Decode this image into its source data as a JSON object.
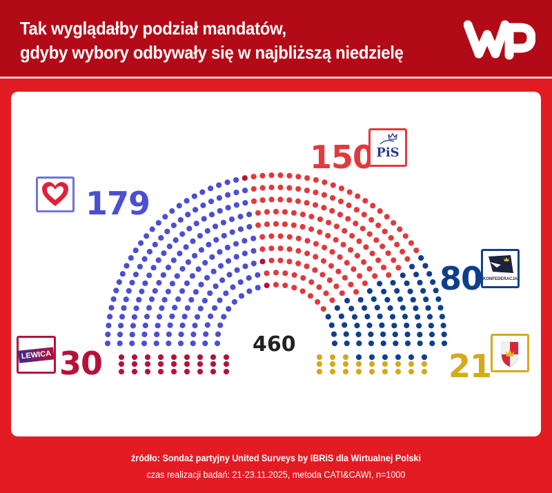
{
  "header": {
    "title_line1": "Tak wyglądałby podział mandatów,",
    "title_line2": "gdyby wybory odbywały się w najbliższą niedzielę",
    "logo": "WP"
  },
  "footer": {
    "source": "źródło: Sondaż partyjny United Surveys by IBRiS dla Wirtualnej Polski",
    "method": "czas realizacji badań: 21-23.11.2025, metoda CATI&CAWI, n=1000"
  },
  "total_seats": "460",
  "parties": {
    "ko": {
      "seats": "179",
      "logo": "heart-icon",
      "color": "#4b4fd0",
      "box_color": "#6f72d9"
    },
    "pis": {
      "seats": "150",
      "logo_text": "PiS",
      "color": "#e03a3e",
      "box_color": "#e03a3e"
    },
    "konf": {
      "seats": "80",
      "logo_text": "KONFEDERACJA",
      "color": "#0f3f8c",
      "box_color": "#0f3f8c"
    },
    "lewica": {
      "seats": "30",
      "logo_text": "LEWICA",
      "color": "#b5123a",
      "box_color": "#b5123a"
    },
    "third": {
      "seats": "21",
      "logo": "coat-of-arms-icon",
      "color": "#d4a91c",
      "box_color": "#d4a91c"
    }
  },
  "chart_data": {
    "type": "hemicycle",
    "title": "Tak wyglądałby podział mandatów, gdyby wybory odbywały się w najbliższą niedzielę",
    "total": 460,
    "series": [
      {
        "name": "KO (heart logo)",
        "value": 179,
        "color": "#4b4fd0"
      },
      {
        "name": "PiS",
        "value": 150,
        "color": "#e03a3e"
      },
      {
        "name": "Konfederacja",
        "value": 80,
        "color": "#0f3f8c"
      },
      {
        "name": "Lewica",
        "value": 30,
        "color": "#b5123a"
      },
      {
        "name": "Third party (coat of arms logo)",
        "value": 21,
        "color": "#d4a91c"
      }
    ],
    "source": "Sondaż partyjny United Surveys by IBRiS dla Wirtualnej Polski, 21-23.11.2025, CATI&CAWI, n=1000"
  }
}
